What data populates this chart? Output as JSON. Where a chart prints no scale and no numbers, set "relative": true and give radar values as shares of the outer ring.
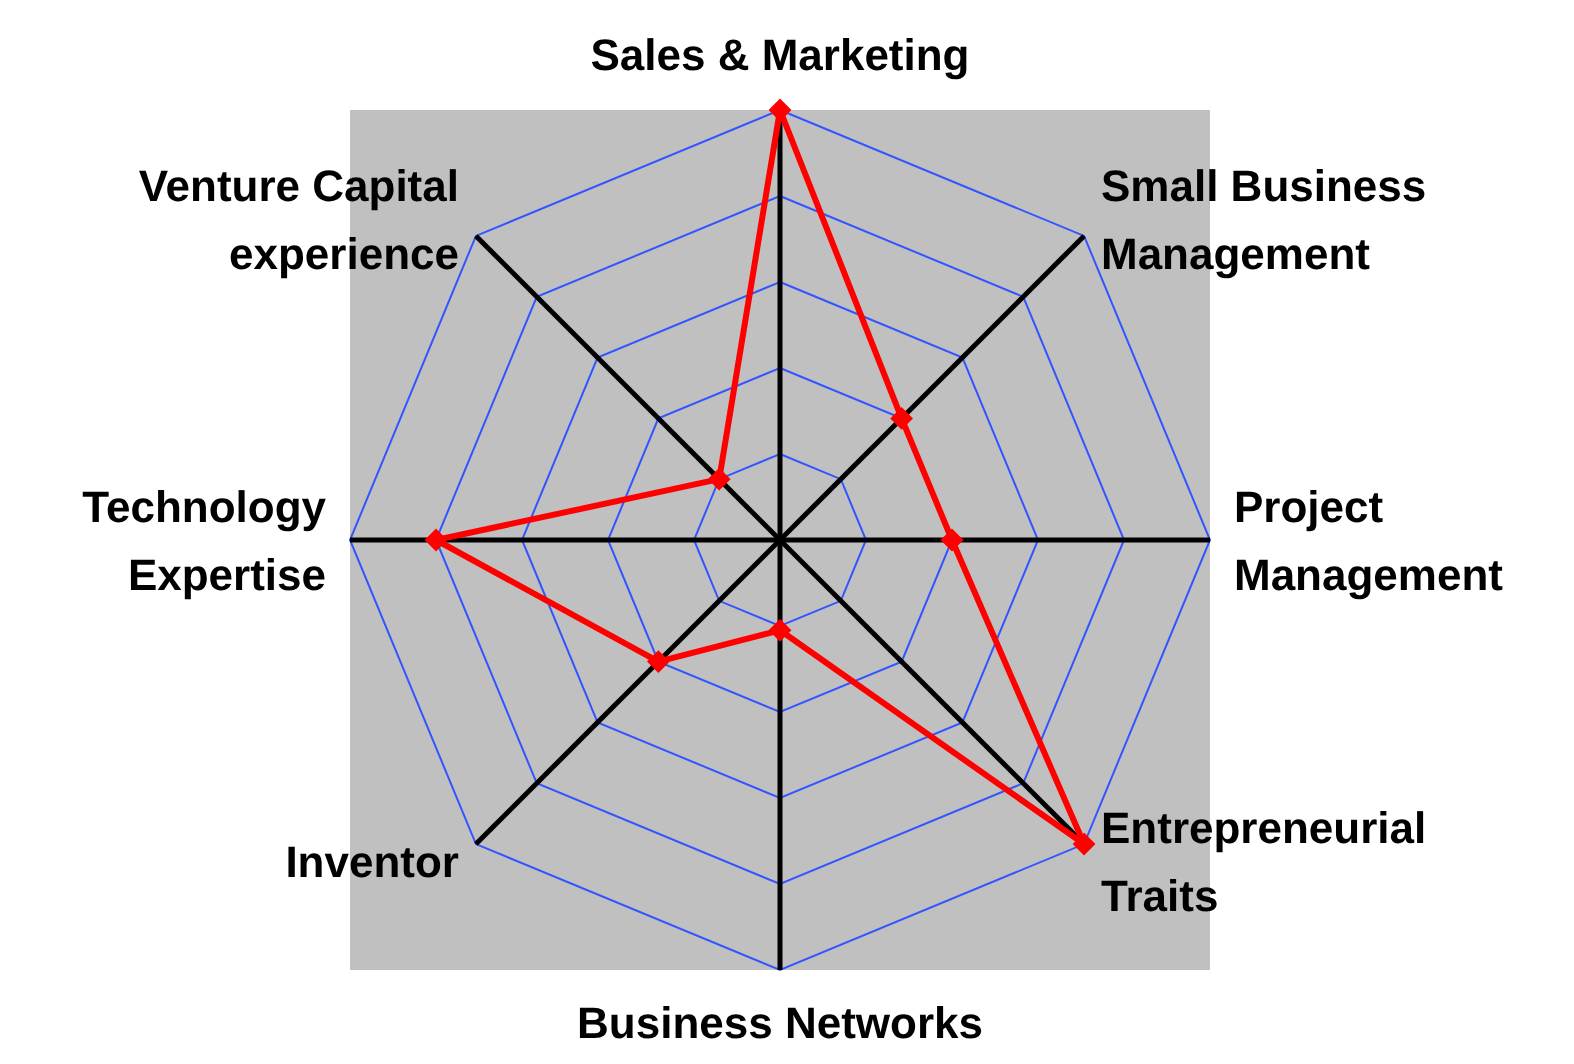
{
  "chart_data": {
    "type": "radar",
    "relative": true,
    "categories": [
      "Sales & Marketing",
      "Small Business Management",
      "Project Management",
      "Entrepreneurial Traits",
      "Business Networks",
      "Inventor",
      "Technology Expertise",
      "Venture Capital experience"
    ],
    "series": [
      {
        "color": "#ff0000",
        "values": [
          1.0,
          0.4,
          0.4,
          1.0,
          0.21,
          0.4,
          0.8,
          0.2
        ]
      }
    ],
    "marker": "diamond",
    "grid": true,
    "legend": false
  }
}
